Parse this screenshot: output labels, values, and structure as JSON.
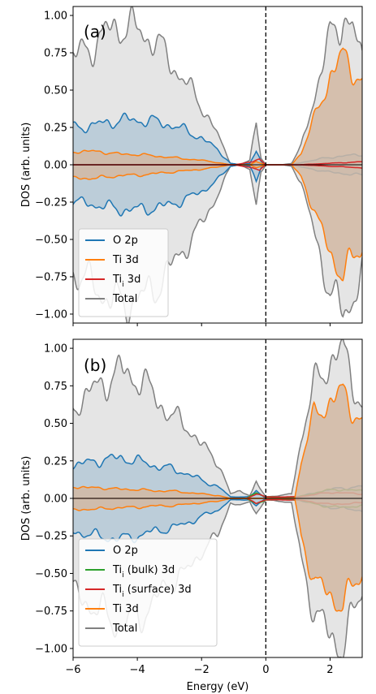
{
  "chart_data": [
    {
      "type": "area",
      "panel_label": "(a)",
      "xlabel": "",
      "ylabel": "DOS (arb. units)",
      "xlim": [
        -6,
        3
      ],
      "ylim": [
        -1.06,
        1.06
      ],
      "xticks": [],
      "yticks": [
        "-1.00",
        "-0.75",
        "-0.50",
        "-0.25",
        "0.00",
        "0.25",
        "0.50",
        "0.75",
        "1.00"
      ],
      "fermi_line": 0,
      "legend_position": "lower-left",
      "legend": [
        "O 2p",
        "Ti 3d",
        "Ti_i 3d",
        "Total"
      ],
      "series": [
        {
          "name": "Total",
          "color": "#808080",
          "fill": "#e0e0e0",
          "mirrored": true,
          "points": [
            [
              -6,
              0.72
            ],
            [
              -5.5,
              0.78
            ],
            [
              -5,
              0.88
            ],
            [
              -4.5,
              0.94
            ],
            [
              -4,
              0.9
            ],
            [
              -3.5,
              0.84
            ],
            [
              -3,
              0.7
            ],
            [
              -2.5,
              0.55
            ],
            [
              -2,
              0.4
            ],
            [
              -1.5,
              0.2
            ],
            [
              -1.1,
              0.01
            ],
            [
              -0.8,
              0
            ],
            [
              -0.5,
              0.03
            ],
            [
              -0.3,
              0.3
            ],
            [
              -0.15,
              0.05
            ],
            [
              0,
              0
            ],
            [
              0.5,
              0
            ],
            [
              0.8,
              0.01
            ],
            [
              1.1,
              0.12
            ],
            [
              1.5,
              0.45
            ],
            [
              2,
              0.85
            ],
            [
              2.4,
              1.0
            ],
            [
              2.7,
              0.9
            ],
            [
              3,
              0.7
            ]
          ]
        },
        {
          "name": "O 2p",
          "color": "#1f77b4",
          "fill": "#b5c9d7",
          "mirrored": true,
          "points": [
            [
              -6,
              0.25
            ],
            [
              -5.5,
              0.26
            ],
            [
              -5,
              0.28
            ],
            [
              -4.5,
              0.3
            ],
            [
              -4,
              0.3
            ],
            [
              -3.5,
              0.29
            ],
            [
              -3,
              0.27
            ],
            [
              -2.5,
              0.23
            ],
            [
              -2,
              0.18
            ],
            [
              -1.5,
              0.1
            ],
            [
              -1.1,
              0.01
            ],
            [
              -0.8,
              0
            ],
            [
              -0.5,
              0.01
            ],
            [
              -0.3,
              0.1
            ],
            [
              -0.15,
              0.02
            ],
            [
              0,
              0
            ],
            [
              0.8,
              0
            ],
            [
              1.2,
              0.02
            ],
            [
              2,
              0.05
            ],
            [
              3,
              0.07
            ]
          ]
        },
        {
          "name": "Ti 3d",
          "color": "#ff7f0e",
          "fill": "#d2b9a3",
          "mirrored": true,
          "points": [
            [
              -6,
              0.09
            ],
            [
              -5.5,
              0.09
            ],
            [
              -5,
              0.085
            ],
            [
              -4.5,
              0.07
            ],
            [
              -4,
              0.07
            ],
            [
              -3.5,
              0.06
            ],
            [
              -3,
              0.05
            ],
            [
              -2.5,
              0.04
            ],
            [
              -2,
              0.03
            ],
            [
              -1.5,
              0.015
            ],
            [
              -1.1,
              0
            ],
            [
              -0.5,
              0
            ],
            [
              -0.3,
              0.02
            ],
            [
              0,
              0
            ],
            [
              0.8,
              0
            ],
            [
              1.1,
              0.08
            ],
            [
              1.5,
              0.3
            ],
            [
              2,
              0.6
            ],
            [
              2.4,
              0.72
            ],
            [
              2.7,
              0.65
            ],
            [
              3,
              0.55
            ]
          ]
        },
        {
          "name": "Ti_i 3d",
          "color": "#d62728",
          "fill": "none",
          "mirrored": true,
          "points": [
            [
              -6,
              0
            ],
            [
              -1,
              0
            ],
            [
              -0.4,
              0.02
            ],
            [
              -0.2,
              0.04
            ],
            [
              0,
              0
            ],
            [
              1,
              0
            ],
            [
              2,
              0.01
            ],
            [
              3,
              0.02
            ]
          ]
        }
      ]
    },
    {
      "type": "area",
      "panel_label": "(b)",
      "xlabel": "Energy (eV)",
      "ylabel": "DOS (arb. units)",
      "xlim": [
        -6,
        3
      ],
      "ylim": [
        -1.06,
        1.06
      ],
      "xticks": [
        "−6",
        "−4",
        "−2",
        "0",
        "2"
      ],
      "yticks": [
        "-1.00",
        "-0.75",
        "-0.50",
        "-0.25",
        "0.00",
        "0.25",
        "0.50",
        "0.75",
        "1.00"
      ],
      "fermi_line": 0,
      "legend_position": "lower-left",
      "legend": [
        "O 2p",
        "Ti_i (bulk) 3d",
        "Ti_i (surface) 3d",
        "Ti 3d",
        "Total"
      ],
      "series": [
        {
          "name": "Total",
          "color": "#808080",
          "fill": "#e0e0e0",
          "mirrored": true,
          "points": [
            [
              -6,
              0.62
            ],
            [
              -5.5,
              0.7
            ],
            [
              -5,
              0.78
            ],
            [
              -4.5,
              0.85
            ],
            [
              -4,
              0.8
            ],
            [
              -3.5,
              0.7
            ],
            [
              -3,
              0.55
            ],
            [
              -2.5,
              0.5
            ],
            [
              -2,
              0.35
            ],
            [
              -1.5,
              0.25
            ],
            [
              -1.1,
              0.03
            ],
            [
              -0.8,
              0.05
            ],
            [
              -0.5,
              0.02
            ],
            [
              -0.3,
              0.1
            ],
            [
              0,
              0.01
            ],
            [
              0.5,
              0.02
            ],
            [
              0.8,
              0.03
            ],
            [
              1.1,
              0.4
            ],
            [
              1.5,
              0.75
            ],
            [
              2,
              0.92
            ],
            [
              2.4,
              0.98
            ],
            [
              2.7,
              0.8
            ],
            [
              3,
              0.6
            ]
          ]
        },
        {
          "name": "O 2p",
          "color": "#1f77b4",
          "fill": "#b5c9d7",
          "mirrored": true,
          "points": [
            [
              -6,
              0.22
            ],
            [
              -5.5,
              0.24
            ],
            [
              -5,
              0.26
            ],
            [
              -4.5,
              0.27
            ],
            [
              -4,
              0.25
            ],
            [
              -3.5,
              0.22
            ],
            [
              -3,
              0.2
            ],
            [
              -2.5,
              0.17
            ],
            [
              -2,
              0.12
            ],
            [
              -1.5,
              0.08
            ],
            [
              -1.1,
              0.01
            ],
            [
              -0.5,
              0.01
            ],
            [
              -0.3,
              0.05
            ],
            [
              0,
              0
            ],
            [
              1,
              0.01
            ],
            [
              2,
              0.06
            ],
            [
              3,
              0.08
            ]
          ]
        },
        {
          "name": "Ti_i (bulk) 3d",
          "color": "#2ca02c",
          "fill": "none",
          "mirrored": true,
          "points": [
            [
              -6,
              0
            ],
            [
              -0.6,
              0
            ],
            [
              -0.3,
              0.04
            ],
            [
              0,
              0.01
            ],
            [
              1,
              0.01
            ],
            [
              1.8,
              0.05
            ],
            [
              2.2,
              0.06
            ],
            [
              3,
              0.05
            ]
          ]
        },
        {
          "name": "Ti_i (surface) 3d",
          "color": "#d62728",
          "fill": "none",
          "mirrored": true,
          "points": [
            [
              -6,
              0
            ],
            [
              -0.6,
              0
            ],
            [
              -0.3,
              0.03
            ],
            [
              0,
              0.01
            ],
            [
              1,
              0.01
            ],
            [
              2,
              0.04
            ],
            [
              3,
              0.03
            ]
          ]
        },
        {
          "name": "Ti 3d",
          "color": "#ff7f0e",
          "fill": "#d2b9a3",
          "mirrored": true,
          "points": [
            [
              -6,
              0.08
            ],
            [
              -5.5,
              0.07
            ],
            [
              -5,
              0.07
            ],
            [
              -4.5,
              0.06
            ],
            [
              -4,
              0.06
            ],
            [
              -3.5,
              0.05
            ],
            [
              -3,
              0.05
            ],
            [
              -2.5,
              0.04
            ],
            [
              -2,
              0.03
            ],
            [
              -1.5,
              0.02
            ],
            [
              -1.1,
              0
            ],
            [
              0,
              0
            ],
            [
              0.9,
              0
            ],
            [
              1.1,
              0.25
            ],
            [
              1.5,
              0.55
            ],
            [
              2,
              0.65
            ],
            [
              2.4,
              0.7
            ],
            [
              2.7,
              0.6
            ],
            [
              3,
              0.5
            ]
          ]
        }
      ]
    }
  ]
}
